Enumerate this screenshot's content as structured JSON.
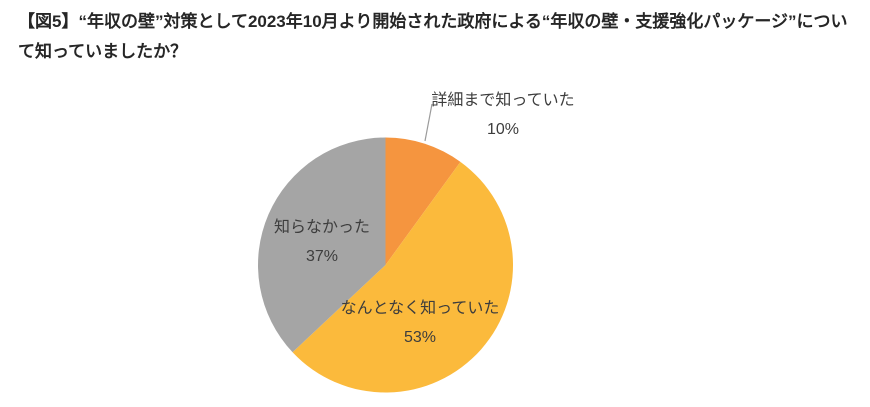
{
  "title": "【図5】“年収の壁”対策として2023年10月より開始された政府による“年収の壁・支援強化パッケージ”について知っていましたか？",
  "chart_data": {
    "type": "pie",
    "title": "【図5】“年収の壁”対策として2023年10月より開始された政府による“年収の壁・支援強化パッケージ”について知っていましたか？",
    "unit": "%",
    "start_angle_deg": 0,
    "direction": "clockwise",
    "legend": "none",
    "label_color": "#3d3d3d",
    "leader_line_color": "#9b9b9b",
    "background_color": "#ffffff",
    "slices": [
      {
        "id": "detail-known",
        "label": "詳細まで知っていた",
        "value": 10,
        "pct_label": "10%",
        "color": "#F5953F"
      },
      {
        "id": "somewhat-known",
        "label": "なんとなく知っていた",
        "value": 53,
        "pct_label": "53%",
        "color": "#FBBA3C"
      },
      {
        "id": "did-not-know",
        "label": "知らなかった",
        "value": 37,
        "pct_label": "37%",
        "color": "#A5A5A5"
      }
    ]
  }
}
